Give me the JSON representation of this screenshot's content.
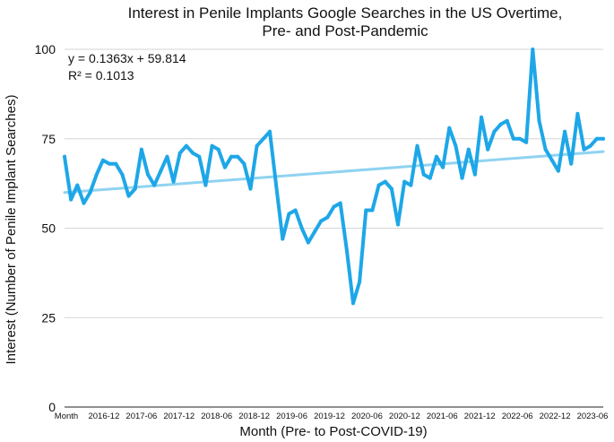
{
  "chart_data": {
    "type": "line",
    "title_lines": [
      "Interest in Penile Implants Google Searches in the US Overtime,",
      "Pre- and Post-Pandemic"
    ],
    "xlabel": "Month (Pre- to Post-COVID-19)",
    "ylabel": "Interest (Number of Penile Implant Searches)",
    "ylim": [
      0,
      100
    ],
    "yticks": [
      0,
      25,
      50,
      75,
      100
    ],
    "grid": "horizontal",
    "series_color": "#1ea7e8",
    "trend_color": "#8fd3f0",
    "x_tick_labels": [
      "Month",
      "2016-12",
      "2017-06",
      "2017-12",
      "2018-06",
      "2018-12",
      "2019-06",
      "2019-12",
      "2020-06",
      "2020-12",
      "2021-06",
      "2021-12",
      "2022-06",
      "2022-12",
      "2023-06"
    ],
    "trendline": {
      "slope": 0.1363,
      "intercept": 59.814,
      "equation_label": "y = 0.1363x + 59.814",
      "r2_label": "R² = 0.1013"
    },
    "series": [
      {
        "values": [
          70,
          58,
          62,
          57,
          60,
          65,
          69,
          68,
          68,
          65,
          59,
          61,
          72,
          65,
          62,
          66,
          70,
          63,
          71,
          73,
          71,
          70,
          62,
          73,
          72,
          67,
          70,
          70,
          68,
          61,
          73,
          75,
          77,
          62,
          47,
          54,
          55,
          50,
          46,
          49,
          52,
          53,
          56,
          57,
          44,
          29,
          35,
          55,
          55,
          62,
          63,
          61,
          51,
          63,
          62,
          73,
          65,
          64,
          70,
          67,
          78,
          73,
          64,
          72,
          65,
          81,
          72,
          77,
          79,
          80,
          75,
          75,
          74,
          100,
          80,
          72,
          69,
          66,
          77,
          68,
          82,
          72,
          73,
          75,
          75
        ]
      }
    ]
  }
}
